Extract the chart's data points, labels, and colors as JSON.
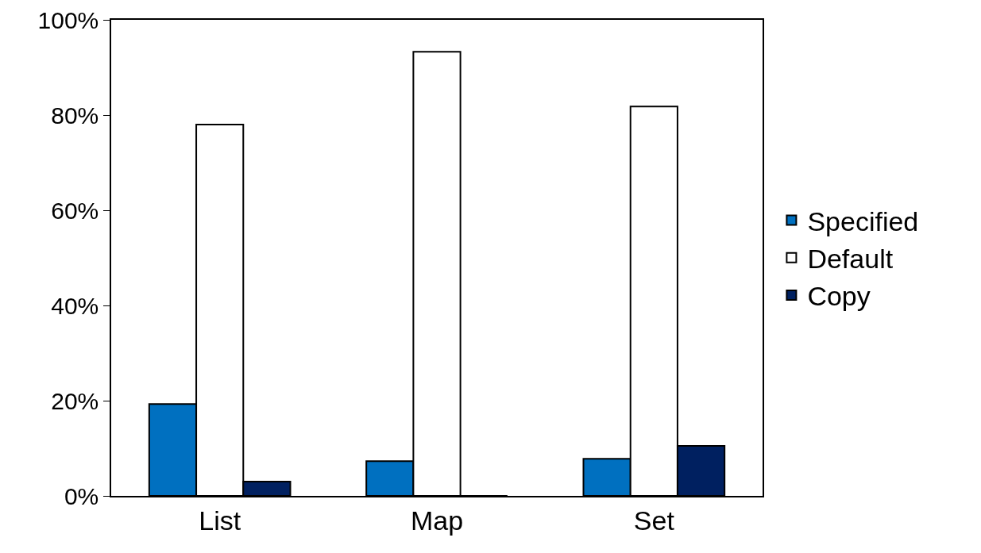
{
  "chart_data": {
    "type": "bar",
    "categories": [
      "List",
      "Map",
      "Set"
    ],
    "series": [
      {
        "name": "Specified",
        "color": "#0070c0",
        "values": [
          19.3,
          7.3,
          7.8
        ]
      },
      {
        "name": "Default",
        "color": "#ffffff",
        "values": [
          78,
          93.3,
          81.8
        ]
      },
      {
        "name": "Copy",
        "color": "#002060",
        "values": [
          3,
          0,
          10.5
        ]
      }
    ],
    "ylim": [
      0,
      100
    ],
    "yticks": [
      {
        "value": 0,
        "label": "0%"
      },
      {
        "value": 20,
        "label": "20%"
      },
      {
        "value": 40,
        "label": "40%"
      },
      {
        "value": 60,
        "label": "60%"
      },
      {
        "value": 80,
        "label": "80%"
      },
      {
        "value": 100,
        "label": "100%"
      }
    ],
    "grid": false,
    "legend": "right"
  }
}
